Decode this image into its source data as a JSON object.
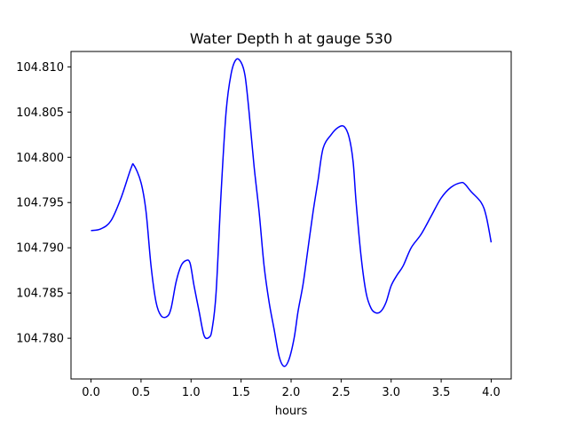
{
  "chart_data": {
    "type": "line",
    "title": "Water Depth h at gauge 530",
    "xlabel": "hours",
    "ylabel": "",
    "xlim": [
      -0.2,
      4.2
    ],
    "ylim": [
      104.7755,
      104.8117
    ],
    "grid": false,
    "x_ticks": [
      0.0,
      0.5,
      1.0,
      1.5,
      2.0,
      2.5,
      3.0,
      3.5,
      4.0
    ],
    "x_tick_labels": [
      "0.0",
      "0.5",
      "1.0",
      "1.5",
      "2.0",
      "2.5",
      "3.0",
      "3.5",
      "4.0"
    ],
    "y_ticks": [
      104.78,
      104.785,
      104.79,
      104.795,
      104.8,
      104.805,
      104.81
    ],
    "y_tick_labels": [
      "104.780",
      "104.785",
      "104.790",
      "104.795",
      "104.800",
      "104.805",
      "104.810"
    ],
    "series": [
      {
        "color": "#0000ff",
        "x": [
          0.0,
          0.1,
          0.2,
          0.3,
          0.4,
          0.43,
          0.5,
          0.55,
          0.6,
          0.65,
          0.7,
          0.76,
          0.8,
          0.85,
          0.9,
          0.95,
          0.99,
          1.03,
          1.08,
          1.13,
          1.18,
          1.21,
          1.25,
          1.3,
          1.35,
          1.4,
          1.45,
          1.5,
          1.54,
          1.58,
          1.63,
          1.68,
          1.73,
          1.78,
          1.83,
          1.88,
          1.93,
          1.98,
          2.03,
          2.07,
          2.12,
          2.17,
          2.22,
          2.27,
          2.32,
          2.4,
          2.47,
          2.53,
          2.58,
          2.62,
          2.65,
          2.7,
          2.75,
          2.8,
          2.85,
          2.9,
          2.95,
          3.0,
          3.06,
          3.12,
          3.2,
          3.3,
          3.4,
          3.5,
          3.6,
          3.7,
          3.74,
          3.8,
          3.9,
          3.95,
          4.0
        ],
        "y": [
          104.7919,
          104.7921,
          104.793,
          104.7955,
          104.7988,
          104.7991,
          104.7972,
          104.794,
          104.788,
          104.784,
          104.7825,
          104.7824,
          104.7833,
          104.7862,
          104.788,
          104.7886,
          104.7883,
          104.7858,
          104.783,
          104.7803,
          104.7801,
          104.781,
          104.785,
          104.796,
          104.805,
          104.8092,
          104.8108,
          104.8105,
          104.809,
          104.805,
          104.799,
          104.794,
          104.788,
          104.784,
          104.781,
          104.778,
          104.7769,
          104.7777,
          104.78,
          104.783,
          104.786,
          104.79,
          104.794,
          104.7975,
          104.801,
          104.8025,
          104.8033,
          104.8034,
          104.8022,
          104.7995,
          104.795,
          104.789,
          104.785,
          104.7833,
          104.7828,
          104.783,
          104.784,
          104.7858,
          104.787,
          104.788,
          104.79,
          104.7915,
          104.7935,
          104.7955,
          104.7967,
          104.7972,
          104.797,
          104.7962,
          104.795,
          104.7935,
          104.7906
        ]
      }
    ]
  }
}
